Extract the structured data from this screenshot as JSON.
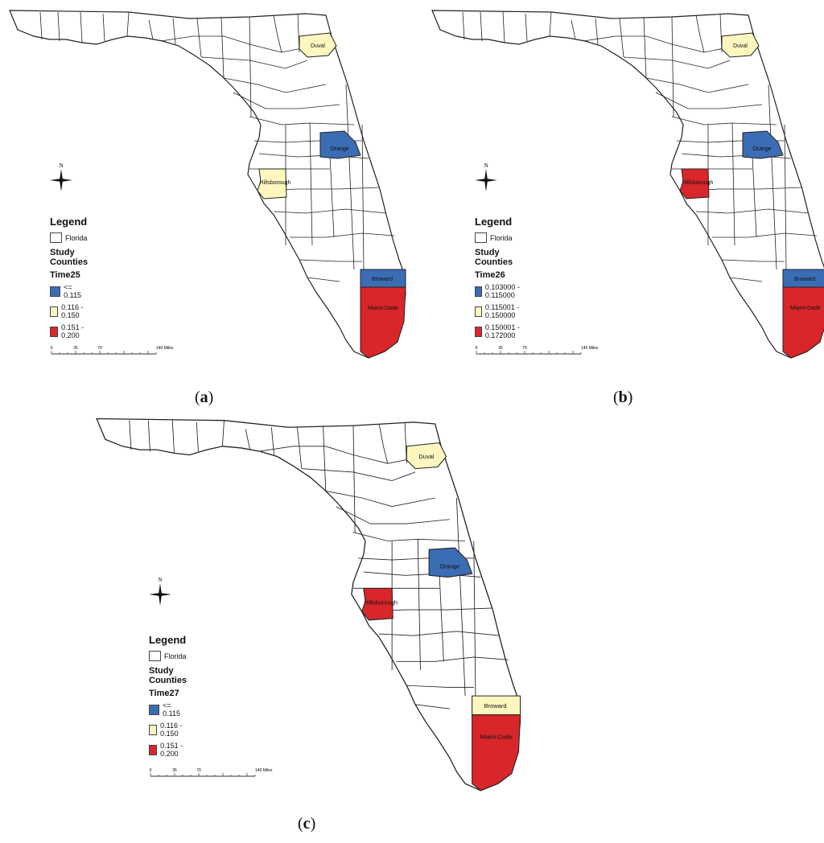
{
  "colors": {
    "low": "#3b6db5",
    "mid": "#fdf7bf",
    "high": "#d8262a",
    "base": "#ffffff"
  },
  "panels": [
    {
      "caption_open": "(",
      "caption_letter": "a",
      "caption_close": ")",
      "legend_title": "Legend",
      "florida_label": "Florida",
      "study_label": "Study Counties",
      "field": "Time25",
      "classes": [
        "<= 0.115",
        "0.116 - 0.150",
        "0.151 - 0.200"
      ],
      "counties": {
        "Duval": "mid",
        "Orange": "low",
        "Hillsborough": "mid",
        "Broward": "low",
        "Miami-Dade": "high"
      },
      "scale_ticks": [
        "0",
        "35",
        "70",
        "140 Miles"
      ]
    },
    {
      "caption_open": "(",
      "caption_letter": "b",
      "caption_close": ")",
      "legend_title": "Legend",
      "florida_label": "Florida",
      "study_label": "Study Counties",
      "field": "Time26",
      "classes": [
        "0.103000 - 0.115000",
        "0.115001 - 0.150000",
        "0.150001 - 0.172000"
      ],
      "counties": {
        "Duval": "mid",
        "Orange": "low",
        "Hillsborough": "high",
        "Broward": "low",
        "Miami-Dade": "high"
      },
      "scale_ticks": [
        "0",
        "35",
        "70",
        "140 Miles"
      ]
    },
    {
      "caption_open": "(",
      "caption_letter": "c",
      "caption_close": ")",
      "legend_title": "Legend",
      "florida_label": "Florida",
      "study_label": "Study Counties",
      "field": "Time27",
      "classes": [
        "<= 0.115",
        "0.116 - 0.150",
        "0.151 - 0.200"
      ],
      "counties": {
        "Duval": "mid",
        "Orange": "low",
        "Hillsborough": "high",
        "Broward": "mid",
        "Miami-Dade": "high"
      },
      "scale_ticks": [
        "0",
        "35",
        "70",
        "140 Miles"
      ]
    }
  ],
  "county_names": {
    "Duval": "Duval",
    "Orange": "Orange",
    "Hillsborough": "Hillsborough",
    "Broward": "Broward",
    "Miami-Dade": "Miami-Dade"
  },
  "north_label": "N"
}
